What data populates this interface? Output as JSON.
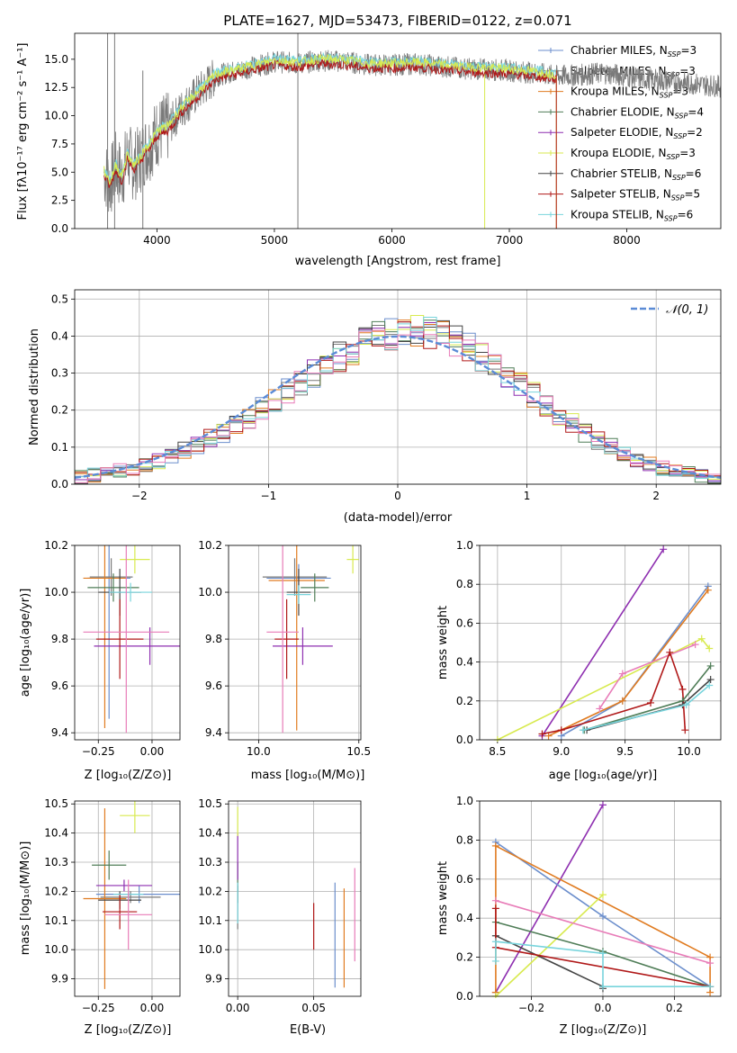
{
  "colors": {
    "chabrier_miles": "#6b8ecc",
    "salpeter_miles": "#7a7a7a",
    "kroupa_miles": "#e07b20",
    "chabrier_elodie": "#4f7d57",
    "salpeter_elodie": "#8e2fb0",
    "kroupa_elodie": "#d8ea4f",
    "chabrier_stelib": "#444444",
    "salpeter_stelib": "#b01818",
    "kroupa_stelib": "#78d4dc",
    "pink": "#e87cb8",
    "gauss": "#5b8bd6"
  },
  "chart_data": [
    {
      "id": "spectrum",
      "type": "line",
      "title": "PLATE=1627, MJD=53473, FIBERID=0122, z=0.071",
      "xlabel": "wavelength [Angstrom, rest frame]",
      "ylabel": "Flux [fλ10⁻¹⁷ erg cm⁻² s⁻¹ A⁻¹]",
      "xlim": [
        3300,
        8800
      ],
      "ylim": [
        0,
        17.3
      ],
      "xticks": [
        "4000",
        "5000",
        "6000",
        "7000",
        "8000"
      ],
      "yticks": [
        "0.0",
        "2.5",
        "5.0",
        "7.5",
        "10.0",
        "12.5",
        "15.0"
      ],
      "legend_position": "top-right",
      "legend": [
        "Chabrier MILES, N_SSP=3",
        "Salpeter MILES, N_SSP=3",
        "Kroupa MILES, N_SSP=3",
        "Chabrier ELODIE, N_SSP=4",
        "Salpeter ELODIE, N_SSP=2",
        "Kroupa ELODIE, N_SSP=3",
        "Chabrier STELIB, N_SSP=6",
        "Salpeter STELIB, N_SSP=5",
        "Kroupa STELIB, N_SSP=6"
      ],
      "data_curve": {
        "x": [
          3550,
          3600,
          3650,
          3700,
          3750,
          3800,
          3850,
          3900,
          3950,
          4000,
          4100,
          4200,
          4300,
          4400,
          4500,
          4600,
          4700,
          4800,
          4900,
          5000,
          5200,
          5400,
          5600,
          5800,
          6000,
          6200,
          6400,
          6600,
          6800,
          7000,
          7200,
          7400,
          7600,
          7800,
          8000,
          8200,
          8400,
          8600,
          8800
        ],
        "y": [
          5.0,
          4.0,
          5.5,
          4.5,
          6.5,
          5.5,
          6.0,
          7.0,
          7.5,
          8.5,
          9.0,
          10.5,
          11.5,
          12.5,
          13.5,
          13.8,
          14.0,
          14.3,
          14.5,
          14.8,
          14.6,
          14.9,
          14.8,
          14.5,
          14.5,
          14.6,
          14.4,
          14.2,
          14.1,
          14.0,
          13.8,
          13.5,
          13.6,
          13.8,
          13.5,
          13.2,
          13.0,
          12.8,
          12.6
        ]
      }
    },
    {
      "id": "residuals",
      "type": "line",
      "xlabel": "(data-model)/error",
      "ylabel": "Normed distribution",
      "xlim": [
        -2.5,
        2.5
      ],
      "ylim": [
        0,
        0.525
      ],
      "xticks": [
        "−2",
        "−1",
        "0",
        "1",
        "2"
      ],
      "yticks": [
        "0.0",
        "0.1",
        "0.2",
        "0.3",
        "0.4",
        "0.5"
      ],
      "legend": [
        "𝒩(0, 1)"
      ],
      "legend_position": "top-right",
      "histogram_bin_width": 0.1,
      "histogram_mean": [
        0.018,
        0.024,
        0.03,
        0.036,
        0.044,
        0.053,
        0.064,
        0.076,
        0.09,
        0.105,
        0.122,
        0.14,
        0.16,
        0.181,
        0.203,
        0.226,
        0.25,
        0.274,
        0.298,
        0.322,
        0.344,
        0.365,
        0.383,
        0.397,
        0.407,
        0.413,
        0.414,
        0.41,
        0.401,
        0.387,
        0.369,
        0.347,
        0.323,
        0.297,
        0.27,
        0.242,
        0.215,
        0.188,
        0.163,
        0.14,
        0.118,
        0.099,
        0.082,
        0.067,
        0.054,
        0.044,
        0.035,
        0.028,
        0.022,
        0.018
      ],
      "gaussian": {
        "mean": 0,
        "sigma": 1
      }
    },
    {
      "id": "age-vs-Z",
      "type": "scatter",
      "xlabel": "Z [log₁₀(Z/Z⊙)]",
      "ylabel": "age  [log₁₀(age/yr)]",
      "xlim": [
        -0.36,
        0.13
      ],
      "ylim": [
        9.37,
        10.2
      ],
      "xticks": [
        "−0.25",
        "0.00"
      ],
      "yticks": [
        "9.4",
        "9.6",
        "9.8",
        "10.0",
        "10.2"
      ],
      "points": [
        {
          "x": -0.2,
          "y": 10.06,
          "xerr": 0.1,
          "yerr": 0.6,
          "color": "chabrier_miles"
        },
        {
          "x": -0.19,
          "y": 10.065,
          "xerr": 0.1,
          "yerr": 0.08,
          "color": "salpeter_miles"
        },
        {
          "x": -0.22,
          "y": 10.06,
          "xerr": 0.1,
          "yerr": 0.64,
          "color": "kroupa_miles"
        },
        {
          "x": -0.18,
          "y": 10.02,
          "xerr": 0.12,
          "yerr": 0.06,
          "color": "chabrier_elodie"
        },
        {
          "x": -0.01,
          "y": 9.77,
          "xerr": 0.26,
          "yerr": 0.08,
          "color": "salpeter_elodie"
        },
        {
          "x": -0.08,
          "y": 10.14,
          "xerr": 0.07,
          "yerr": 0.06,
          "color": "kroupa_elodie"
        },
        {
          "x": -0.15,
          "y": 10.0,
          "xerr": 0.1,
          "yerr": 0.1,
          "color": "chabrier_stelib"
        },
        {
          "x": -0.15,
          "y": 9.8,
          "xerr": 0.11,
          "yerr": 0.17,
          "color": "salpeter_stelib"
        },
        {
          "x": -0.1,
          "y": 10.0,
          "xerr": 0.1,
          "yerr": 0.04,
          "color": "kroupa_stelib"
        },
        {
          "x": -0.12,
          "y": 9.83,
          "xerr": 0.2,
          "yerr": 0.43,
          "color": "pink"
        }
      ]
    },
    {
      "id": "age-vs-mass",
      "type": "scatter",
      "xlabel": "mass [log₁₀(M/M⊙)]",
      "ylabel": "",
      "xlim": [
        9.85,
        10.51
      ],
      "ylim": [
        9.37,
        10.2
      ],
      "xticks": [
        "10.0",
        "10.5"
      ],
      "yticks": [
        "9.4",
        "9.6",
        "9.8",
        "10.0",
        "10.2"
      ],
      "points": [
        {
          "x": 10.2,
          "y": 10.06,
          "xerr": 0.16,
          "yerr": 0.06,
          "color": "chabrier_miles"
        },
        {
          "x": 10.18,
          "y": 10.065,
          "xerr": 0.16,
          "yerr": 0.08,
          "color": "salpeter_miles"
        },
        {
          "x": 10.19,
          "y": 10.05,
          "xerr": 0.14,
          "yerr": 0.64,
          "color": "kroupa_miles"
        },
        {
          "x": 10.28,
          "y": 10.02,
          "xerr": 0.07,
          "yerr": 0.06,
          "color": "chabrier_elodie"
        },
        {
          "x": 10.22,
          "y": 9.77,
          "xerr": 0.15,
          "yerr": 0.08,
          "color": "salpeter_elodie"
        },
        {
          "x": 10.47,
          "y": 10.14,
          "xerr": 0.03,
          "yerr": 0.06,
          "color": "kroupa_elodie"
        },
        {
          "x": 10.2,
          "y": 10.0,
          "xerr": 0.06,
          "yerr": 0.1,
          "color": "chabrier_stelib"
        },
        {
          "x": 10.14,
          "y": 9.8,
          "xerr": 0.06,
          "yerr": 0.17,
          "color": "salpeter_stelib"
        },
        {
          "x": 10.2,
          "y": 9.99,
          "xerr": 0.06,
          "yerr": 0.04,
          "color": "kroupa_stelib"
        },
        {
          "x": 10.12,
          "y": 9.83,
          "xerr": 0.08,
          "yerr": 0.43,
          "color": "pink"
        }
      ]
    },
    {
      "id": "weight-vs-age",
      "type": "line",
      "xlabel": "age  [log₁₀(age/yr)]",
      "ylabel": "mass weight",
      "xlim": [
        8.36,
        10.25
      ],
      "ylim": [
        0,
        1.0
      ],
      "xticks": [
        "8.5",
        "9.0",
        "9.5",
        "10.0"
      ],
      "yticks": [
        "0.0",
        "0.2",
        "0.4",
        "0.6",
        "0.8",
        "1.0"
      ],
      "series": [
        {
          "color": "salpeter_elodie",
          "x": [
            8.85,
            9.8
          ],
          "y": [
            0.02,
            0.98
          ]
        },
        {
          "color": "chabrier_miles",
          "x": [
            9.0,
            9.48,
            10.15
          ],
          "y": [
            0.02,
            0.2,
            0.79
          ]
        },
        {
          "color": "kroupa_miles",
          "x": [
            8.9,
            9.48,
            10.15
          ],
          "y": [
            0.02,
            0.2,
            0.77
          ]
        },
        {
          "color": "kroupa_elodie",
          "x": [
            8.5,
            10.1,
            10.16
          ],
          "y": [
            0.0,
            0.52,
            0.47
          ]
        },
        {
          "color": "pink",
          "x": [
            9.3,
            9.48,
            10.05
          ],
          "y": [
            0.16,
            0.34,
            0.49
          ]
        },
        {
          "color": "salpeter_stelib",
          "x": [
            8.85,
            9.0,
            9.7,
            9.85,
            9.95,
            9.97
          ],
          "y": [
            0.03,
            0.05,
            0.19,
            0.45,
            0.26,
            0.05
          ]
        },
        {
          "color": "chabrier_elodie",
          "x": [
            9.18,
            9.95,
            10.17
          ],
          "y": [
            0.05,
            0.2,
            0.38
          ]
        },
        {
          "color": "chabrier_stelib",
          "x": [
            9.2,
            9.95,
            10.17
          ],
          "y": [
            0.05,
            0.18,
            0.31
          ]
        },
        {
          "color": "kroupa_stelib",
          "x": [
            9.17,
            9.98,
            10.16
          ],
          "y": [
            0.05,
            0.18,
            0.28
          ]
        }
      ]
    },
    {
      "id": "mass-vs-Z",
      "type": "scatter",
      "xlabel": "Z [log₁₀(Z/Z⊙)]",
      "ylabel": "mass [log₁₀(M/M⊙)]",
      "xlim": [
        -0.36,
        0.13
      ],
      "ylim": [
        9.84,
        10.51
      ],
      "xticks": [
        "−0.25",
        "0.00"
      ],
      "yticks": [
        "9.9",
        "10.0",
        "10.1",
        "10.2",
        "10.3",
        "10.4",
        "10.5"
      ],
      "points": [
        {
          "x": -0.06,
          "y": 10.19,
          "xerr": 0.2,
          "yerr": 0.03,
          "color": "chabrier_miles"
        },
        {
          "x": -0.1,
          "y": 10.18,
          "xerr": 0.14,
          "yerr": 0.02,
          "color": "salpeter_miles"
        },
        {
          "x": -0.22,
          "y": 10.175,
          "xerr": 0.1,
          "yerr": 0.31,
          "color": "kroupa_miles"
        },
        {
          "x": -0.2,
          "y": 10.29,
          "xerr": 0.08,
          "yerr": 0.05,
          "color": "chabrier_elodie"
        },
        {
          "x": -0.13,
          "y": 10.22,
          "xerr": 0.13,
          "yerr": 0.02,
          "color": "salpeter_elodie"
        },
        {
          "x": -0.08,
          "y": 10.46,
          "xerr": 0.07,
          "yerr": 0.06,
          "color": "kroupa_elodie"
        },
        {
          "x": -0.15,
          "y": 10.17,
          "xerr": 0.1,
          "yerr": 0.03,
          "color": "chabrier_stelib"
        },
        {
          "x": -0.15,
          "y": 10.13,
          "xerr": 0.08,
          "yerr": 0.06,
          "color": "salpeter_stelib"
        },
        {
          "x": -0.11,
          "y": 10.19,
          "xerr": 0.07,
          "yerr": 0.02,
          "color": "kroupa_stelib"
        },
        {
          "x": -0.11,
          "y": 10.12,
          "xerr": 0.11,
          "yerr": 0.12,
          "color": "pink"
        }
      ]
    },
    {
      "id": "mass-vs-ebv",
      "type": "scatter",
      "xlabel": "E(B-V)",
      "ylabel": "",
      "xlim": [
        -0.006,
        0.081
      ],
      "ylim": [
        9.84,
        10.51
      ],
      "xticks": [
        "0.00",
        "0.05"
      ],
      "yticks": [
        "9.9",
        "10.0",
        "10.1",
        "10.2",
        "10.3",
        "10.4",
        "10.5"
      ],
      "points": [
        {
          "x": 0.064,
          "y": 10.05,
          "xerr": 0,
          "yerr": 0.18,
          "color": "chabrier_miles"
        },
        {
          "x": 0.0,
          "y": 10.15,
          "xerr": 0,
          "yerr": 0.08,
          "color": "salpeter_miles"
        },
        {
          "x": 0.07,
          "y": 10.04,
          "xerr": 0,
          "yerr": 0.17,
          "color": "kroupa_miles"
        },
        {
          "x": 0.0,
          "y": 10.25,
          "xerr": 0,
          "yerr": 0.05,
          "color": "chabrier_elodie"
        },
        {
          "x": 0.0,
          "y": 10.32,
          "xerr": 0,
          "yerr": 0.08,
          "color": "salpeter_elodie"
        },
        {
          "x": 0.0,
          "y": 10.44,
          "xerr": 0,
          "yerr": 0.05,
          "color": "kroupa_elodie"
        },
        {
          "x": 0.0,
          "y": 10.19,
          "xerr": 0,
          "yerr": 0.03,
          "color": "chabrier_stelib"
        },
        {
          "x": 0.05,
          "y": 10.08,
          "xerr": 0,
          "yerr": 0.08,
          "color": "salpeter_stelib"
        },
        {
          "x": 0.0,
          "y": 10.16,
          "xerr": 0,
          "yerr": 0.07,
          "color": "kroupa_stelib"
        },
        {
          "x": 0.077,
          "y": 10.12,
          "xerr": 0,
          "yerr": 0.16,
          "color": "pink"
        }
      ]
    },
    {
      "id": "weight-vs-Z",
      "type": "line",
      "xlabel": "Z [log₁₀(Z/Z⊙)]",
      "ylabel": "mass weight",
      "xlim": [
        -0.345,
        0.33
      ],
      "ylim": [
        0,
        1.0
      ],
      "xticks": [
        "−0.2",
        "0.0",
        "0.2"
      ],
      "yticks": [
        "0.0",
        "0.2",
        "0.4",
        "0.6",
        "0.8",
        "1.0"
      ],
      "series": [
        {
          "color": "salpeter_elodie",
          "x": [
            -0.3,
            0.0
          ],
          "y": [
            0.02,
            0.98
          ]
        },
        {
          "color": "chabrier_miles",
          "x": [
            -0.3,
            0.0,
            0.3
          ],
          "y": [
            0.79,
            0.41,
            0.05
          ]
        },
        {
          "color": "kroupa_miles",
          "x": [
            -0.3,
            -0.3,
            0.3,
            0.3
          ],
          "y": [
            0.02,
            0.77,
            0.2,
            0.02
          ]
        },
        {
          "color": "kroupa_elodie",
          "x": [
            -0.3,
            0.0
          ],
          "y": [
            0.0,
            0.52
          ]
        },
        {
          "color": "pink",
          "x": [
            -0.3,
            0.3
          ],
          "y": [
            0.49,
            0.17
          ]
        },
        {
          "color": "chabrier_elodie",
          "x": [
            -0.3,
            0.0,
            0.3
          ],
          "y": [
            0.38,
            0.23,
            0.05
          ]
        },
        {
          "color": "chabrier_stelib",
          "x": [
            -0.3,
            0.0,
            0.0
          ],
          "y": [
            0.31,
            0.05,
            0.04
          ]
        },
        {
          "color": "salpeter_stelib",
          "x": [
            -0.3,
            -0.3,
            0.3
          ],
          "y": [
            0.45,
            0.25,
            0.05
          ]
        },
        {
          "color": "kroupa_stelib",
          "x": [
            -0.3,
            -0.3,
            0.0,
            0.0,
            0.3
          ],
          "y": [
            0.18,
            0.28,
            0.22,
            0.05,
            0.05
          ]
        }
      ]
    }
  ]
}
